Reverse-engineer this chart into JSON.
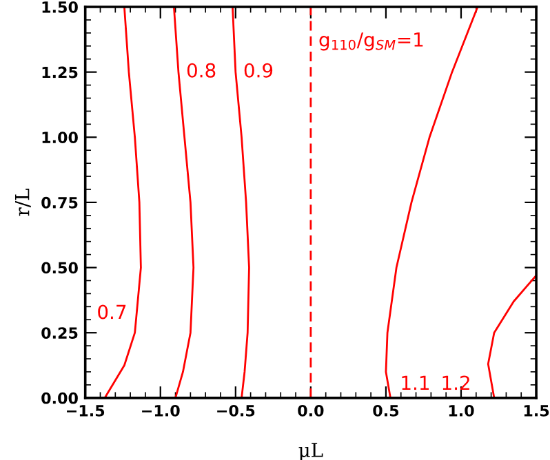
{
  "chart_data": {
    "type": "line",
    "xlabel": "μL",
    "ylabel": "r/L",
    "xlim": [
      -1.5,
      1.5
    ],
    "ylim": [
      0,
      1.5
    ],
    "xticks": [
      {
        "value": -1.5,
        "label": "−1.5"
      },
      {
        "value": -1.0,
        "label": "−1.0"
      },
      {
        "value": -0.5,
        "label": "−0.5"
      },
      {
        "value": 0.0,
        "label": "0.0"
      },
      {
        "value": 0.5,
        "label": "0.5"
      },
      {
        "value": 1.0,
        "label": "1.0"
      },
      {
        "value": 1.5,
        "label": "1.5"
      }
    ],
    "yticks": [
      {
        "value": 0,
        "label": "0.00"
      },
      {
        "value": 0.25,
        "label": "0.25"
      },
      {
        "value": 0.5,
        "label": "0.50"
      },
      {
        "value": 0.75,
        "label": "0.75"
      },
      {
        "value": 1.0,
        "label": "1.00"
      },
      {
        "value": 1.25,
        "label": "1.25"
      },
      {
        "value": 1.5,
        "label": "1.50"
      }
    ],
    "grid": false,
    "legend": false,
    "line_style": "solid",
    "series": [
      {
        "name": "0.7",
        "color": "#ff0000",
        "x": [
          -1.37,
          -1.24,
          -1.17,
          -1.13,
          -1.14,
          -1.17,
          -1.21,
          -1.24
        ],
        "values": [
          0,
          0.125,
          0.25,
          0.5,
          0.75,
          1.0,
          1.25,
          1.5
        ]
      },
      {
        "name": "0.8",
        "color": "#ff0000",
        "x": [
          -0.9,
          -0.85,
          -0.8,
          -0.78,
          -0.8,
          -0.84,
          -0.88,
          -0.91
        ],
        "values": [
          0,
          0.1,
          0.25,
          0.5,
          0.75,
          1.0,
          1.25,
          1.5
        ]
      },
      {
        "name": "0.9",
        "color": "#ff0000",
        "x": [
          -0.46,
          -0.44,
          -0.42,
          -0.41,
          -0.43,
          -0.46,
          -0.5,
          -0.52
        ],
        "values": [
          0,
          0.1,
          0.25,
          0.5,
          0.75,
          1.0,
          1.25,
          1.5
        ]
      },
      {
        "name": "g$_{110}$/g$_{SM}$=1",
        "color": "#ff0000",
        "line_style": "dashed",
        "x": [
          0,
          0
        ],
        "values": [
          0,
          1.5
        ]
      },
      {
        "name": "1.1",
        "color": "#ff0000",
        "x": [
          0.53,
          0.5,
          0.51,
          0.57,
          0.67,
          0.79,
          0.94,
          1.11
        ],
        "values": [
          0,
          0.1,
          0.25,
          0.5,
          0.75,
          1.0,
          1.25,
          1.5
        ]
      },
      {
        "name": "1.2",
        "color": "#ff0000",
        "x": [
          1.22,
          1.18,
          1.22,
          1.35,
          1.5
        ],
        "values": [
          0,
          0.13,
          0.25,
          0.37,
          0.47
        ]
      }
    ]
  }
}
